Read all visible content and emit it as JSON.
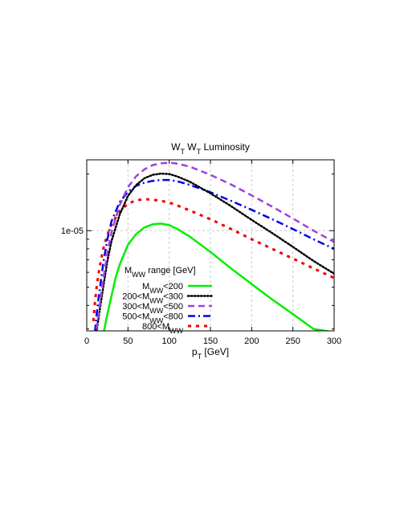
{
  "chart_data": {
    "type": "line",
    "title": "W_T W_T Luminosity",
    "title_parts": [
      {
        "text": "W",
        "sub": "T"
      },
      {
        "text": " W",
        "sub": "T"
      },
      {
        "text": " Luminosity",
        "sub": ""
      }
    ],
    "xlabel": "p_T [GeV]",
    "xlabel_parts": [
      {
        "text": "p",
        "sub": "T"
      },
      {
        "text": " [GeV]",
        "sub": ""
      }
    ],
    "ylabel": "",
    "xlim": [
      0,
      300
    ],
    "ylim": [
      2.93e-06,
      2.38e-05
    ],
    "yscale": "log",
    "grid": true,
    "x_ticks": [
      "0",
      "50",
      "100",
      "150",
      "200",
      "250",
      "300"
    ],
    "y_ticks": [
      {
        "value": 1e-05,
        "label": "1e-05"
      }
    ],
    "legend": {
      "placement": "bottom-left",
      "title": "M_WW range [GeV]",
      "title_parts": [
        {
          "text": "M",
          "sub": "WW"
        },
        {
          "text": " range [GeV]",
          "sub": ""
        }
      ]
    },
    "series": [
      {
        "name": "M_WW<200",
        "label_parts": [
          {
            "text": "M",
            "sub": "WW"
          },
          {
            "text": "<200",
            "sub": ""
          }
        ],
        "color": "#00ee00",
        "dash": "solid",
        "x": [
          20,
          25,
          30,
          35,
          40,
          50,
          60,
          70,
          80,
          90,
          100,
          110,
          125,
          150,
          175,
          200,
          225,
          250,
          275,
          295
        ],
        "y": [
          2.8e-06,
          3.6e-06,
          4.5e-06,
          5.6e-06,
          6.6e-06,
          8.4e-06,
          9.6e-06,
          1.04e-05,
          1.08e-05,
          1.09e-05,
          1.07e-05,
          1.02e-05,
          9.3e-06,
          7.7e-06,
          6.3e-06,
          5.2e-06,
          4.3e-06,
          3.6e-06,
          3e-06,
          2.9e-06
        ]
      },
      {
        "name": "200<M_WW<300",
        "label_parts": [
          {
            "text": "200<M",
            "sub": ""
          },
          {
            "text": "",
            "sub": "WW"
          },
          {
            "text": "<300",
            "sub": ""
          }
        ],
        "color": "#000000",
        "dash": "dotted",
        "x": [
          12,
          15,
          20,
          25,
          30,
          40,
          50,
          60,
          70,
          80,
          90,
          100,
          110,
          125,
          150,
          175,
          200,
          225,
          250,
          275,
          300
        ],
        "y": [
          2.9e-06,
          3.6e-06,
          5e-06,
          6.9e-06,
          8.8e-06,
          1.22e-05,
          1.53e-05,
          1.75e-05,
          1.9e-05,
          1.98e-05,
          2.01e-05,
          2e-05,
          1.94e-05,
          1.82e-05,
          1.58e-05,
          1.35e-05,
          1.14e-05,
          9.7e-06,
          8.2e-06,
          6.9e-06,
          5.9e-06
        ]
      },
      {
        "name": "300<M_WW<500",
        "label_parts": [
          {
            "text": "300<M",
            "sub": ""
          },
          {
            "text": "",
            "sub": "WW"
          },
          {
            "text": "<500",
            "sub": ""
          }
        ],
        "color": "#a040e0",
        "dash": "dashed",
        "x": [
          12,
          15,
          20,
          25,
          30,
          40,
          50,
          60,
          70,
          80,
          90,
          100,
          110,
          125,
          150,
          175,
          200,
          225,
          250,
          275,
          300
        ],
        "y": [
          3e-06,
          3.8e-06,
          5.5e-06,
          7.6e-06,
          9.8e-06,
          1.37e-05,
          1.7e-05,
          1.95e-05,
          2.12e-05,
          2.23e-05,
          2.28e-05,
          2.3e-05,
          2.27e-05,
          2.19e-05,
          1.98e-05,
          1.76e-05,
          1.54e-05,
          1.34e-05,
          1.16e-05,
          1e-05,
          8.7e-06
        ]
      },
      {
        "name": "500<M_WW<800",
        "label_parts": [
          {
            "text": "500<M",
            "sub": ""
          },
          {
            "text": "",
            "sub": "WW"
          },
          {
            "text": "<800",
            "sub": ""
          }
        ],
        "color": "#0000ee",
        "dash": "dashdot",
        "x": [
          10,
          12,
          15,
          20,
          25,
          30,
          40,
          50,
          60,
          70,
          80,
          90,
          100,
          110,
          125,
          150,
          175,
          200,
          225,
          250,
          275,
          300
        ],
        "y": [
          2.9e-06,
          3.6e-06,
          4.6e-06,
          6.7e-06,
          9e-06,
          1.12e-05,
          1.42e-05,
          1.61e-05,
          1.73e-05,
          1.8e-05,
          1.84e-05,
          1.86e-05,
          1.86e-05,
          1.83e-05,
          1.75e-05,
          1.6e-05,
          1.44e-05,
          1.29e-05,
          1.15e-05,
          1.02e-05,
          9e-06,
          8e-06
        ]
      },
      {
        "name": "800<M_WW",
        "label_parts": [
          {
            "text": "800<M",
            "sub": ""
          },
          {
            "text": "",
            "sub": "WW"
          }
        ],
        "color": "#ee0000",
        "dash": "dotted-thick",
        "x": [
          8,
          10,
          12,
          15,
          20,
          25,
          30,
          40,
          50,
          60,
          70,
          80,
          90,
          100,
          110,
          125,
          150,
          175,
          200,
          225,
          250,
          275,
          300
        ],
        "y": [
          3.3e-06,
          4.2e-06,
          5e-06,
          6.2e-06,
          8e-06,
          9.5e-06,
          1.08e-05,
          1.27e-05,
          1.39e-05,
          1.45e-05,
          1.47e-05,
          1.46e-05,
          1.44e-05,
          1.41e-05,
          1.36e-05,
          1.28e-05,
          1.15e-05,
          1.02e-05,
          9e-06,
          8e-06,
          7.1e-06,
          6.3e-06,
          5.6e-06
        ]
      }
    ]
  }
}
